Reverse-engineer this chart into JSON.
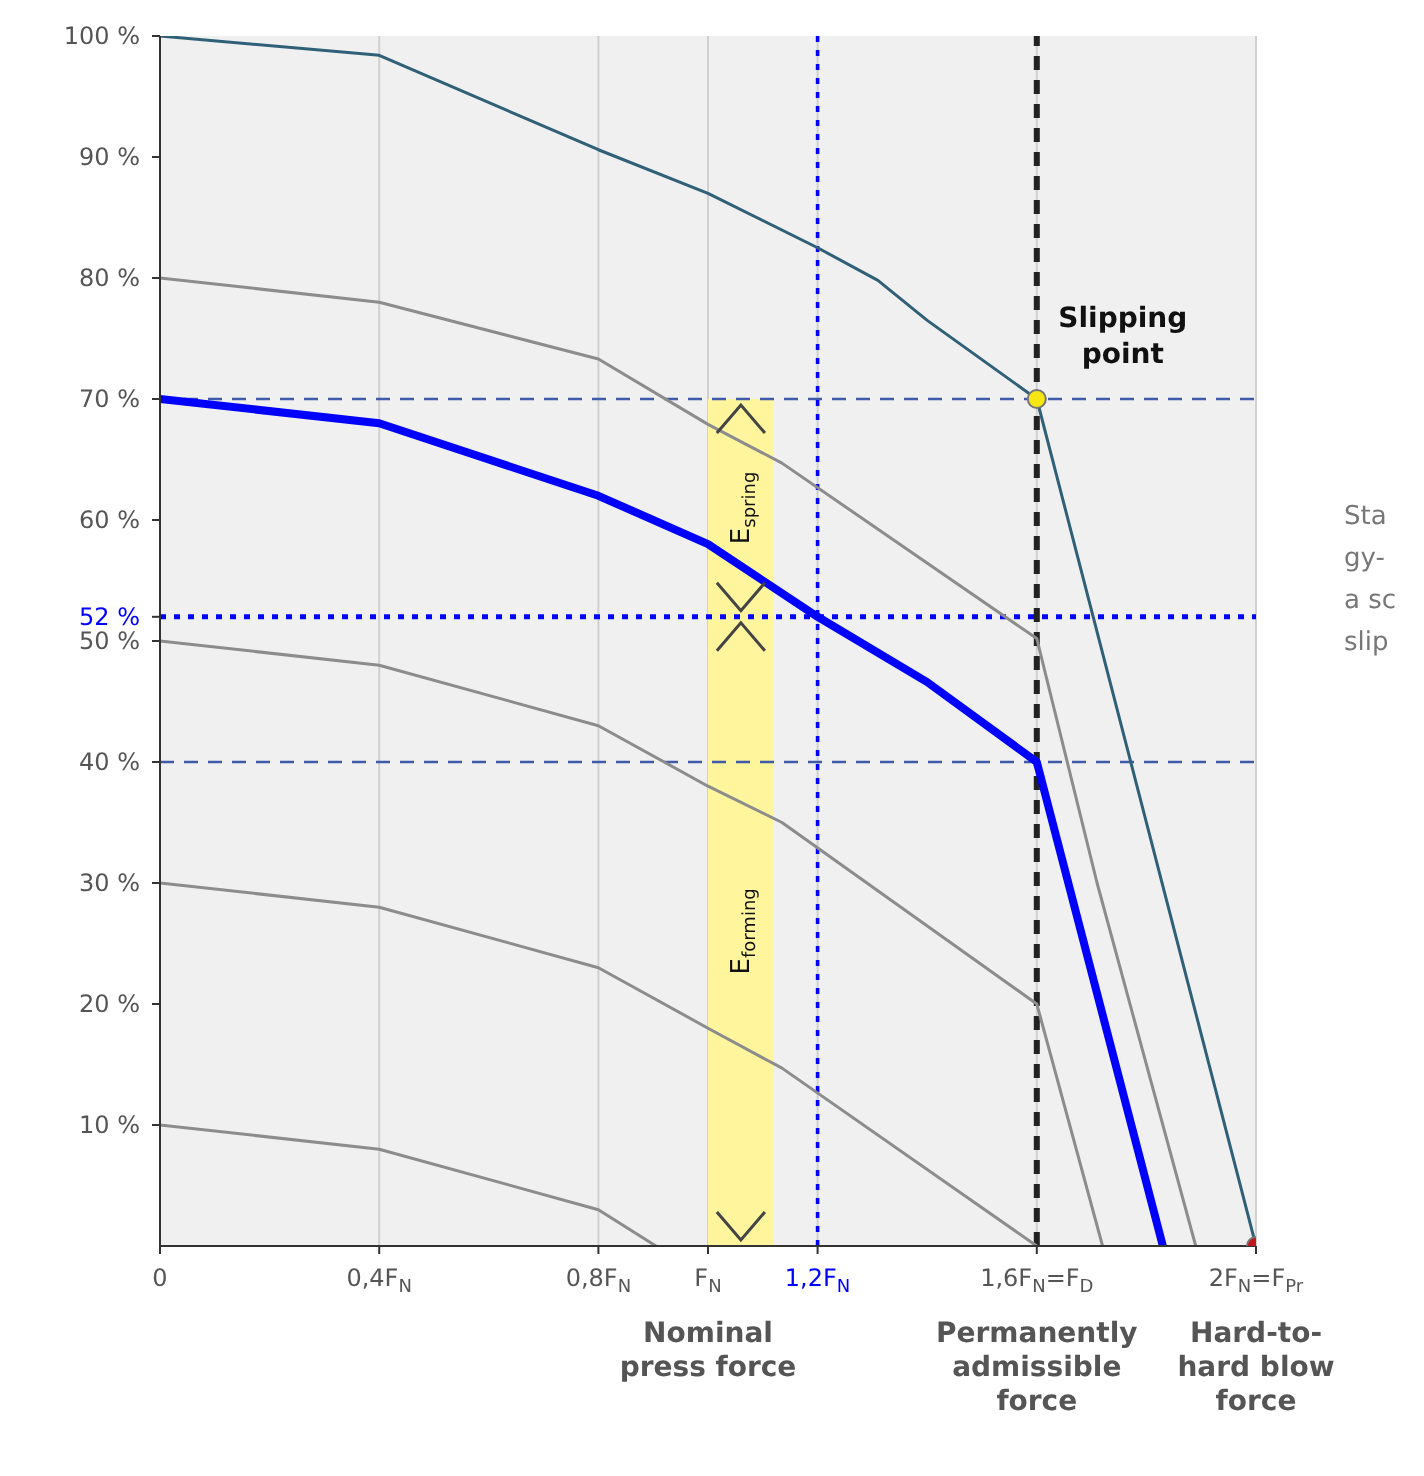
{
  "chart_data": {
    "type": "line",
    "xlim": [
      0,
      2
    ],
    "ylim": [
      0,
      100
    ],
    "xticks": [
      0,
      {
        "value": 0.4,
        "label": "0,4F$_{N}$"
      },
      {
        "value": 0.8,
        "label": "0,8F$_{N}$"
      },
      {
        "value": 1,
        "label": "F$_{N}$"
      },
      {
        "value": 1.2,
        "label": "1,2F$_{N}$"
      },
      {
        "value": 1.6,
        "label": "1,6F$_{N}$=F$_{D}$"
      },
      {
        "value": 2,
        "label": "2F$_{N}$=F$_{Pr}$"
      }
    ],
    "yticks": [
      {
        "value": 10,
        "label": "10 %"
      },
      {
        "value": 20,
        "label": "20 %"
      },
      {
        "value": 30,
        "label": "30 %"
      },
      {
        "value": 40,
        "label": "40 %"
      },
      {
        "value": 50,
        "label": "50 %"
      },
      {
        "value": 52,
        "label": "52 %"
      },
      {
        "value": 60,
        "label": "60 %"
      },
      {
        "value": 70,
        "label": "70 %"
      },
      {
        "value": 80,
        "label": "80 %"
      },
      {
        "value": 90,
        "label": "90 %"
      },
      {
        "value": 100,
        "label": "100 %"
      }
    ],
    "grid": "x",
    "marker": "none",
    "line_style": "solid",
    "series": [
      {
        "color": "#2f6077",
        "x": [
          0,
          0.4,
          0.8,
          1,
          1.2,
          1.31,
          1.4,
          1.6,
          2
        ],
        "values": [
          100,
          98.4,
          90.6,
          87,
          82.5,
          79.8,
          76.5,
          70,
          0
        ]
      },
      {
        "color": "#0000ff",
        "x": [
          0,
          0.4,
          0.8,
          1,
          1.2,
          1.4,
          1.6,
          1.83
        ],
        "values": [
          70,
          68,
          62,
          58,
          52,
          46.6,
          40,
          0
        ]
      },
      {
        "color": "#8c8c8c",
        "x": [
          0,
          0.4,
          0.8,
          1,
          1.135,
          1.6,
          1.71,
          1.89
        ],
        "values": [
          80,
          78,
          73.3,
          67.9,
          64.7,
          50.2,
          30,
          0
        ]
      },
      {
        "color": "#8c8c8c",
        "x": [
          0,
          0.4,
          0.8,
          1,
          1.135,
          1.6,
          1.72
        ],
        "values": [
          50,
          48,
          43,
          38,
          35,
          20,
          0
        ]
      },
      {
        "color": "#8c8c8c",
        "x": [
          0,
          0.4,
          0.8,
          1,
          1.135,
          1.6
        ],
        "values": [
          30,
          28,
          23,
          18,
          14.7,
          0
        ]
      },
      {
        "color": "#8c8c8c",
        "x": [
          0,
          0.4,
          0.8,
          0.905
        ],
        "values": [
          10,
          8,
          3,
          0
        ]
      },
      {
        "type": "scatter",
        "color": "#f5e614",
        "marker": "circle",
        "x": [
          1.6
        ],
        "values": [
          70
        ]
      },
      {
        "type": "scatter",
        "color": "#c0171c",
        "marker": "circle",
        "x": [
          2
        ],
        "values": [
          0
        ]
      }
    ],
    "ref_lines": [
      {
        "axis": "y",
        "value": 70,
        "color": "#3f5aa8",
        "line_style": "dashed"
      },
      {
        "axis": "y",
        "value": 40,
        "color": "#3f5aa8",
        "line_style": "dashed"
      },
      {
        "axis": "y",
        "value": 52,
        "color": "#0000ff",
        "line_style": "dotted"
      },
      {
        "axis": "x",
        "value": 1.2,
        "color": "#0000ff",
        "line_style": "dotted"
      },
      {
        "axis": "x",
        "value": 1.6,
        "color": "#222222",
        "line_style": "dashed"
      }
    ],
    "bands": [
      {
        "axis": "x",
        "from": 1,
        "to": 1.12,
        "color": "#fff59d"
      }
    ],
    "annotations": [
      {
        "text": "Slipping point",
        "x": 1.6,
        "y": 70
      },
      "E$_{spring}$",
      "E$_{forming}$",
      "Nominal press force",
      "Permanently admissible force",
      "Hard-to-hard blow force",
      "Sta\ngy-\na sc\nslip"
    ]
  }
}
